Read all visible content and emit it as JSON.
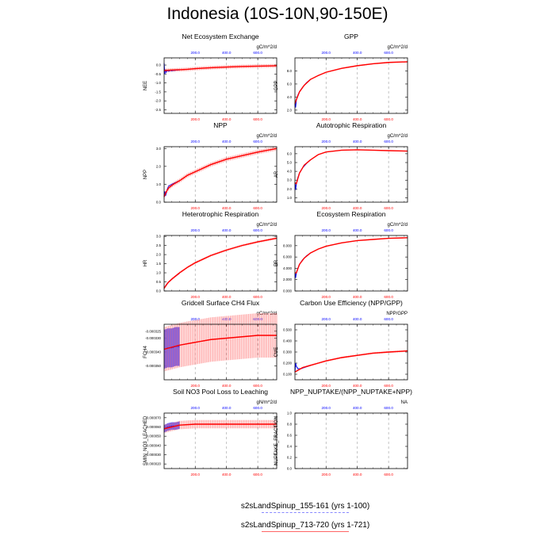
{
  "title": "Indonesia (10S-10N,90-150E)",
  "colors": {
    "blue_run": "#0000ff",
    "red_run": "#ff0000",
    "grid": "#aaaaaa",
    "frame": "#000000"
  },
  "legend": [
    {
      "label": "s2sLandSpinup_155-161 (yrs 1-100)",
      "color": "#0000ff",
      "style": "dashed"
    },
    {
      "label": "s2sLandSpinup_713-720 (yrs 1-721)",
      "color": "#ff0000",
      "style": "solid"
    }
  ],
  "chart_data": [
    {
      "type": "line",
      "title": "Net Ecosystem Exchange",
      "units": "gC/m^2/d",
      "ylabel": "NEE",
      "xlim": [
        1,
        721
      ],
      "xticks": [
        200.0,
        400.0,
        600.0
      ],
      "xticklabels": [
        "200.0",
        "400.0",
        "600.0"
      ],
      "ylim": [
        -2.7,
        0.4
      ],
      "yticks": [
        0.0,
        -0.5,
        -1.0,
        -1.5,
        -2.0,
        -2.5
      ],
      "yticklabels": [
        "0.0",
        "-0.5",
        "-1.0",
        "-1.5",
        "-2.0",
        "-2.5"
      ],
      "series": [
        {
          "x": [
            1,
            5,
            10,
            15,
            20,
            30,
            40,
            50,
            60,
            70,
            80,
            90,
            100
          ],
          "y": [
            0.1,
            -0.5,
            -0.25,
            -0.4,
            -0.3,
            -0.35,
            -0.3,
            -0.32,
            -0.3,
            -0.3,
            -0.28,
            -0.28,
            -0.27
          ]
        },
        {
          "x": [
            1,
            50,
            100,
            150,
            200,
            300,
            400,
            500,
            600,
            721
          ],
          "y": [
            -0.3,
            -0.28,
            -0.26,
            -0.24,
            -0.2,
            -0.15,
            -0.11,
            -0.08,
            -0.06,
            -0.04
          ],
          "band": 0.1
        }
      ]
    },
    {
      "type": "line",
      "title": "GPP",
      "units": "gC/m^2/d",
      "ylabel": "GPP",
      "xlim": [
        1,
        721
      ],
      "xticks": [
        200.0,
        400.0,
        600.0
      ],
      "xticklabels": [
        "200.0",
        "400.0",
        "600.0"
      ],
      "ylim": [
        1.5,
        10.0
      ],
      "yticks": [
        2.0,
        4.0,
        6.0,
        8.0
      ],
      "yticklabels": [
        "2.0",
        "4.0",
        "6.0",
        "8.0"
      ],
      "series": [
        {
          "x": [
            1,
            5,
            10,
            20,
            30,
            50,
            75,
            100
          ],
          "y": [
            3.0,
            2.4,
            3.6,
            4.3,
            4.8,
            5.5,
            6.2,
            6.7
          ]
        },
        {
          "x": [
            1,
            10,
            30,
            60,
            100,
            150,
            200,
            300,
            400,
            500,
            600,
            721
          ],
          "y": [
            3.0,
            3.6,
            4.8,
            5.8,
            6.7,
            7.3,
            7.8,
            8.4,
            8.8,
            9.1,
            9.3,
            9.4
          ],
          "band": 0.1
        }
      ]
    },
    {
      "type": "line",
      "title": "NPP",
      "units": "gC/m^2/d",
      "ylabel": "NPP",
      "xlim": [
        1,
        721
      ],
      "xticks": [
        200.0,
        400.0,
        600.0
      ],
      "xticklabels": [
        "200.0",
        "400.0",
        "600.0"
      ],
      "ylim": [
        0.0,
        3.1
      ],
      "yticks": [
        0.0,
        1.0,
        2.0,
        3.0
      ],
      "yticklabels": [
        "0.0",
        "1.0",
        "2.0",
        "3.0"
      ],
      "series": [
        {
          "x": [
            1,
            5,
            10,
            20,
            30,
            50,
            75,
            100
          ],
          "y": [
            0.3,
            0.6,
            0.35,
            0.7,
            0.9,
            1.0,
            1.1,
            1.2
          ]
        },
        {
          "x": [
            1,
            10,
            30,
            60,
            100,
            150,
            200,
            300,
            400,
            500,
            600,
            721
          ],
          "y": [
            0.3,
            0.5,
            0.8,
            1.0,
            1.2,
            1.5,
            1.7,
            2.1,
            2.4,
            2.6,
            2.8,
            3.0
          ],
          "band": 0.12
        }
      ]
    },
    {
      "type": "line",
      "title": "Autotrophic Respiration",
      "units": "gC/m^2/d",
      "ylabel": "AR",
      "xlim": [
        1,
        721
      ],
      "xticks": [
        200.0,
        400.0,
        600.0
      ],
      "xticklabels": [
        "200.0",
        "400.0",
        "600.0"
      ],
      "ylim": [
        0.5,
        6.8
      ],
      "yticks": [
        1.0,
        2.0,
        3.0,
        4.0,
        5.0,
        6.0
      ],
      "yticklabels": [
        "1.0",
        "2.0",
        "3.0",
        "4.0",
        "5.0",
        "6.0"
      ],
      "series": [
        {
          "x": [
            1,
            5,
            10,
            20,
            30,
            50,
            75,
            100
          ],
          "y": [
            2.7,
            1.9,
            2.6,
            3.3,
            3.8,
            4.4,
            4.9,
            5.3
          ]
        },
        {
          "x": [
            1,
            10,
            30,
            60,
            100,
            150,
            200,
            300,
            400,
            500,
            600,
            721
          ],
          "y": [
            2.7,
            2.6,
            3.8,
            4.7,
            5.3,
            5.9,
            6.2,
            6.4,
            6.45,
            6.4,
            6.35,
            6.3
          ],
          "band": 0.05
        }
      ]
    },
    {
      "type": "line",
      "title": "Heterotrophic Respiration",
      "units": "gC/m^2/d",
      "ylabel": "HR",
      "xlim": [
        1,
        721
      ],
      "xticks": [
        200.0,
        400.0,
        600.0
      ],
      "xticklabels": [
        "200.0",
        "400.0",
        "600.0"
      ],
      "ylim": [
        0.0,
        3.05
      ],
      "yticks": [
        0.0,
        0.5,
        1.0,
        1.5,
        2.0,
        2.5,
        3.0
      ],
      "yticklabels": [
        "0.0",
        "0.5",
        "1.0",
        "1.5",
        "2.0",
        "2.5",
        "3.0"
      ],
      "series": [
        {
          "x": [
            1,
            10,
            25,
            50,
            75,
            100
          ],
          "y": [
            0.15,
            0.28,
            0.45,
            0.65,
            0.82,
            0.98
          ]
        },
        {
          "x": [
            1,
            25,
            50,
            100,
            150,
            200,
            300,
            400,
            500,
            600,
            721
          ],
          "y": [
            0.15,
            0.45,
            0.65,
            1.0,
            1.3,
            1.55,
            1.95,
            2.25,
            2.5,
            2.7,
            2.9
          ],
          "band": 0.06
        }
      ]
    },
    {
      "type": "line",
      "title": "Ecosystem Respiration",
      "units": "gC/m^2/d",
      "ylabel": "ER",
      "xlim": [
        1,
        721
      ],
      "xticks": [
        200.0,
        400.0,
        600.0
      ],
      "xticklabels": [
        "200.0",
        "400.0",
        "600.0"
      ],
      "ylim": [
        0.0,
        9.8
      ],
      "yticks": [
        0.0,
        2.0,
        4.0,
        6.0,
        8.0
      ],
      "yticklabels": [
        "0.000",
        "2.000",
        "4.000",
        "6.000",
        "8.000"
      ],
      "series": [
        {
          "x": [
            1,
            5,
            10,
            20,
            30,
            50,
            75,
            100
          ],
          "y": [
            3.2,
            2.3,
            3.2,
            4.0,
            4.7,
            5.5,
            6.2,
            6.7
          ]
        },
        {
          "x": [
            1,
            10,
            30,
            60,
            100,
            150,
            200,
            300,
            400,
            500,
            600,
            721
          ],
          "y": [
            3.2,
            3.2,
            4.7,
            5.8,
            6.7,
            7.4,
            7.9,
            8.5,
            8.9,
            9.1,
            9.3,
            9.4
          ],
          "band": 0.1
        }
      ]
    },
    {
      "type": "line",
      "title": "Gridcell Surface CH4 Flux",
      "units": "gC/m^2/d",
      "ylabel": "FCH4",
      "xlim": [
        1,
        721
      ],
      "xticks": [
        200.0,
        400.0,
        600.0
      ],
      "xticklabels": [
        "200.0",
        "400.0",
        "600.0"
      ],
      "ylim": [
        -0.00036,
        -0.00032
      ],
      "yticks": [
        -0.000325,
        -0.00033,
        -0.00034,
        -0.00035
      ],
      "yticklabels": [
        "-0.000325",
        "-0.000330",
        "-0.000340",
        "-0.000350"
      ],
      "series": [
        {
          "x": [
            1,
            25,
            50,
            75,
            100
          ],
          "y": [
            -0.000338,
            -0.000337,
            -0.000337,
            -0.000336,
            -0.000336
          ],
          "band": 1.4e-05
        },
        {
          "x": [
            1,
            100,
            200,
            300,
            400,
            500,
            600,
            721
          ],
          "y": [
            -0.000338,
            -0.000335,
            -0.000333,
            -0.000331,
            -0.00033,
            -0.000329,
            -0.000328,
            -0.000328
          ],
          "band": 1.6e-05
        }
      ]
    },
    {
      "type": "line",
      "title": "Carbon Use Efficiency (NPP/GPP)",
      "units": "NPP/GPP",
      "ylabel": "CUE",
      "xlim": [
        1,
        721
      ],
      "xticks": [
        200.0,
        400.0,
        600.0
      ],
      "xticklabels": [
        "200.0",
        "400.0",
        "600.0"
      ],
      "ylim": [
        0.05,
        0.55
      ],
      "yticks": [
        0.1,
        0.2,
        0.3,
        0.4,
        0.5
      ],
      "yticklabels": [
        "0.100",
        "0.200",
        "0.300",
        "0.400",
        "0.500"
      ],
      "series": [
        {
          "x": [
            1,
            5,
            10,
            20,
            40,
            60,
            80,
            100
          ],
          "y": [
            0.12,
            0.2,
            0.17,
            0.15,
            0.15,
            0.16,
            0.17,
            0.18
          ]
        },
        {
          "x": [
            1,
            50,
            100,
            150,
            200,
            300,
            400,
            500,
            600,
            721
          ],
          "y": [
            0.12,
            0.16,
            0.18,
            0.2,
            0.22,
            0.25,
            0.27,
            0.29,
            0.3,
            0.31
          ],
          "band": 0.008
        }
      ]
    },
    {
      "type": "line",
      "title": "Soil NO3 Pool Loss to Leaching",
      "units": "gN/m^2/d",
      "ylabel": "SMIN_NO3_LEACHED",
      "xlim": [
        1,
        721
      ],
      "xticks": [
        200.0,
        400.0,
        600.0
      ],
      "xticklabels": [
        "200.0",
        "400.0",
        "600.0"
      ],
      "ylim": [
        1.5e-05,
        7.5e-05
      ],
      "yticks": [
        2e-05,
        3e-05,
        4e-05,
        5e-05,
        6e-05,
        7e-05
      ],
      "yticklabels": [
        "0.000020",
        "0.000030",
        "0.000040",
        "0.000050",
        "0.000060",
        "0.000070"
      ],
      "series": [
        {
          "x": [
            1,
            25,
            50,
            75,
            100
          ],
          "y": [
            5.8e-05,
            6e-05,
            6.1e-05,
            6.1e-05,
            6.2e-05
          ],
          "band": 4e-06
        },
        {
          "x": [
            1,
            100,
            200,
            300,
            400,
            500,
            600,
            721
          ],
          "y": [
            5.8e-05,
            6.2e-05,
            6.3e-05,
            6.3e-05,
            6.3e-05,
            6.3e-05,
            6.3e-05,
            6.3e-05
          ],
          "band": 4.5e-06
        }
      ]
    },
    {
      "type": "line",
      "title": "NPP_NUPTAKE/(NPP_NUPTAKE+NPP)",
      "units": "NA",
      "ylabel": "NUPTAKE_FRACTION",
      "xlim": [
        1,
        721
      ],
      "xticks": [
        200.0,
        400.0,
        600.0
      ],
      "xticklabels": [
        "200.0",
        "400.0",
        "600.0"
      ],
      "ylim": [
        0.0,
        1.0
      ],
      "yticks": [
        0.0,
        0.2,
        0.4,
        0.6,
        0.8,
        1.0
      ],
      "yticklabels": [
        "0.0",
        "0.2",
        "0.4",
        "0.6",
        "0.8",
        "1.0"
      ],
      "series": []
    }
  ]
}
